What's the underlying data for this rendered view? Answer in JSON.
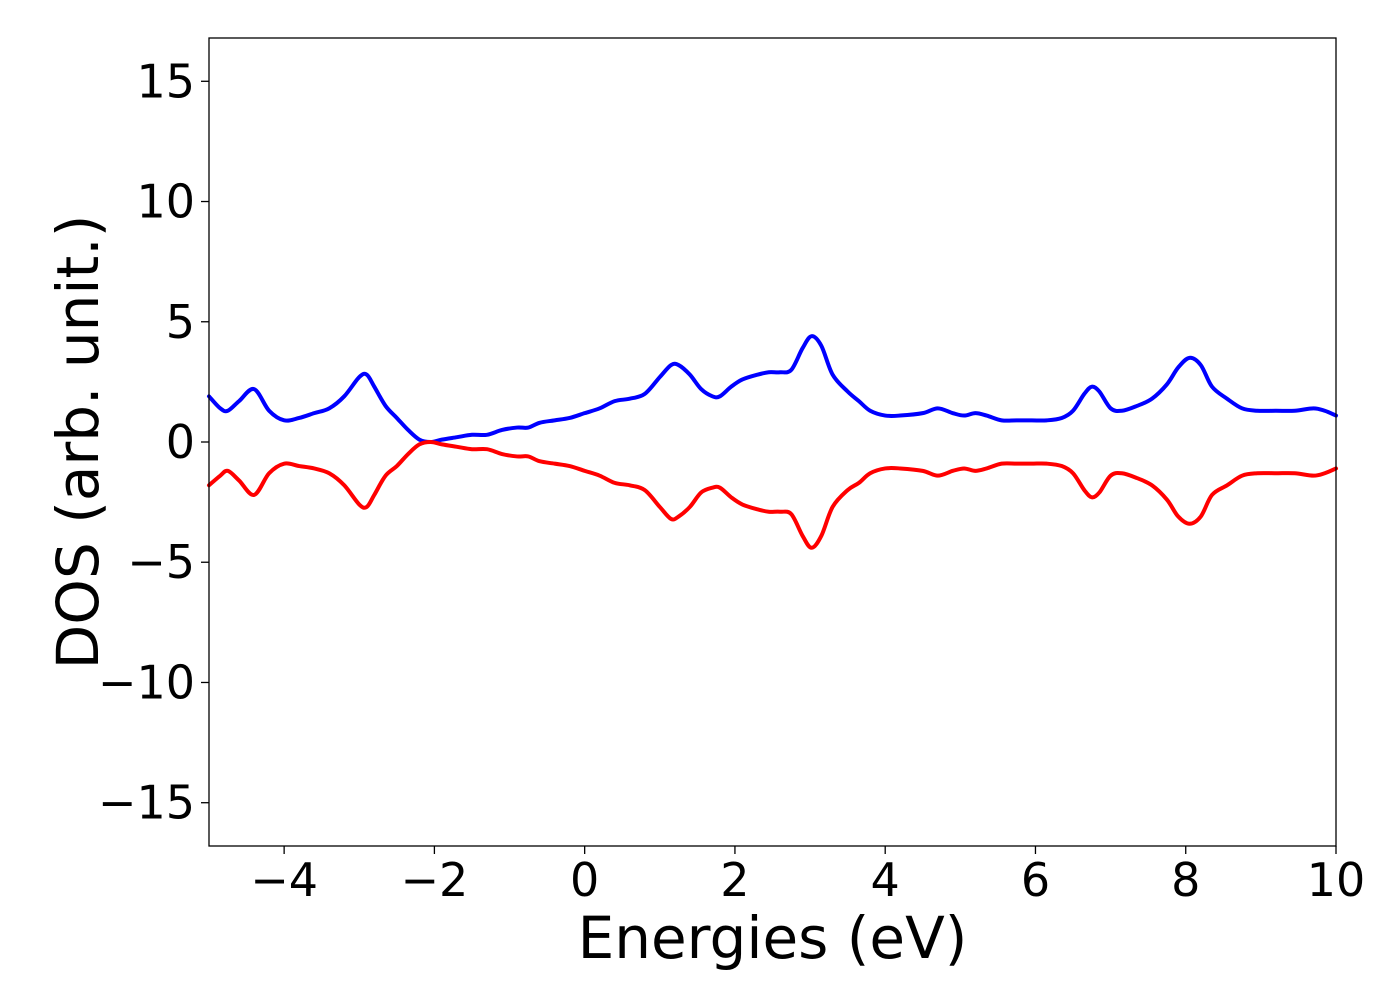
{
  "chart_data": {
    "type": "line",
    "title": "",
    "xlabel": "Energies (eV)",
    "ylabel": "DOS (arb. unit.)",
    "xlim": [
      -5,
      10
    ],
    "ylim": [
      -16.8,
      16.8
    ],
    "xticks": [
      -4,
      -2,
      0,
      2,
      4,
      6,
      8,
      10
    ],
    "xtick_labels": [
      "−4",
      "−2",
      "0",
      "2",
      "4",
      "6",
      "8",
      "10"
    ],
    "yticks": [
      15,
      10,
      5,
      0,
      -5,
      -10,
      -15
    ],
    "ytick_labels": [
      "15",
      "10",
      "5",
      "0",
      "−5",
      "−10",
      "−15"
    ],
    "grid": false,
    "series": [
      {
        "color": "#0000ff",
        "x": [
          -5.0,
          -4.85,
          -4.75,
          -4.6,
          -4.4,
          -4.2,
          -4.0,
          -3.8,
          -3.6,
          -3.4,
          -3.2,
          -3.0,
          -2.9,
          -2.8,
          -2.65,
          -2.5,
          -2.35,
          -2.2,
          -2.05,
          -1.9,
          -1.7,
          -1.5,
          -1.3,
          -1.1,
          -0.9,
          -0.75,
          -0.6,
          -0.4,
          -0.2,
          0.0,
          0.2,
          0.4,
          0.6,
          0.8,
          1.0,
          1.15,
          1.25,
          1.4,
          1.55,
          1.7,
          1.8,
          1.95,
          2.1,
          2.3,
          2.45,
          2.6,
          2.75,
          2.9,
          3.02,
          3.15,
          3.3,
          3.5,
          3.65,
          3.8,
          4.0,
          4.2,
          4.5,
          4.7,
          4.9,
          5.05,
          5.2,
          5.35,
          5.55,
          5.75,
          5.95,
          6.15,
          6.35,
          6.5,
          6.65,
          6.75,
          6.85,
          7.0,
          7.15,
          7.35,
          7.55,
          7.75,
          7.9,
          8.05,
          8.2,
          8.35,
          8.55,
          8.75,
          8.95,
          9.2,
          9.45,
          9.7,
          9.85,
          10.0
        ],
        "values": [
          1.9,
          1.4,
          1.3,
          1.7,
          2.2,
          1.3,
          0.9,
          1.0,
          1.2,
          1.4,
          1.9,
          2.7,
          2.8,
          2.3,
          1.5,
          1.0,
          0.5,
          0.1,
          0.0,
          0.1,
          0.2,
          0.3,
          0.3,
          0.5,
          0.6,
          0.6,
          0.8,
          0.9,
          1.0,
          1.2,
          1.4,
          1.7,
          1.8,
          2.0,
          2.7,
          3.2,
          3.2,
          2.8,
          2.2,
          1.9,
          1.9,
          2.3,
          2.6,
          2.8,
          2.9,
          2.9,
          3.0,
          3.9,
          4.4,
          4.0,
          2.8,
          2.1,
          1.7,
          1.3,
          1.1,
          1.1,
          1.2,
          1.4,
          1.2,
          1.1,
          1.2,
          1.1,
          0.9,
          0.9,
          0.9,
          0.9,
          1.0,
          1.3,
          2.0,
          2.3,
          2.1,
          1.4,
          1.3,
          1.5,
          1.8,
          2.4,
          3.1,
          3.5,
          3.2,
          2.3,
          1.8,
          1.4,
          1.3,
          1.3,
          1.3,
          1.4,
          1.3,
          1.1
        ]
      },
      {
        "color": "#ff0000",
        "x": [
          -5.0,
          -4.85,
          -4.75,
          -4.6,
          -4.4,
          -4.2,
          -4.0,
          -3.8,
          -3.6,
          -3.4,
          -3.2,
          -3.0,
          -2.9,
          -2.8,
          -2.65,
          -2.5,
          -2.35,
          -2.2,
          -2.05,
          -1.9,
          -1.7,
          -1.5,
          -1.3,
          -1.1,
          -0.9,
          -0.75,
          -0.6,
          -0.4,
          -0.2,
          0.0,
          0.2,
          0.4,
          0.6,
          0.8,
          1.0,
          1.15,
          1.25,
          1.4,
          1.55,
          1.7,
          1.8,
          1.95,
          2.1,
          2.3,
          2.45,
          2.6,
          2.75,
          2.9,
          3.02,
          3.15,
          3.3,
          3.5,
          3.65,
          3.8,
          4.0,
          4.2,
          4.5,
          4.7,
          4.9,
          5.05,
          5.2,
          5.35,
          5.55,
          5.75,
          5.95,
          6.15,
          6.35,
          6.5,
          6.65,
          6.75,
          6.85,
          7.0,
          7.15,
          7.35,
          7.55,
          7.75,
          7.9,
          8.05,
          8.2,
          8.35,
          8.55,
          8.75,
          8.95,
          9.2,
          9.45,
          9.7,
          9.85,
          10.0
        ],
        "values": [
          -1.8,
          -1.4,
          -1.2,
          -1.6,
          -2.2,
          -1.3,
          -0.9,
          -1.0,
          -1.1,
          -1.3,
          -1.8,
          -2.6,
          -2.7,
          -2.2,
          -1.4,
          -1.0,
          -0.5,
          -0.1,
          0.0,
          -0.1,
          -0.2,
          -0.3,
          -0.3,
          -0.5,
          -0.6,
          -0.6,
          -0.8,
          -0.9,
          -1.0,
          -1.2,
          -1.4,
          -1.7,
          -1.8,
          -2.0,
          -2.7,
          -3.2,
          -3.1,
          -2.7,
          -2.1,
          -1.9,
          -1.9,
          -2.3,
          -2.6,
          -2.8,
          -2.9,
          -2.9,
          -3.0,
          -3.9,
          -4.4,
          -3.9,
          -2.7,
          -2.0,
          -1.7,
          -1.3,
          -1.1,
          -1.1,
          -1.2,
          -1.4,
          -1.2,
          -1.1,
          -1.2,
          -1.1,
          -0.9,
          -0.9,
          -0.9,
          -0.9,
          -1.0,
          -1.3,
          -2.0,
          -2.3,
          -2.1,
          -1.4,
          -1.3,
          -1.5,
          -1.8,
          -2.4,
          -3.1,
          -3.4,
          -3.1,
          -2.2,
          -1.8,
          -1.4,
          -1.3,
          -1.3,
          -1.3,
          -1.4,
          -1.3,
          -1.1
        ]
      }
    ]
  }
}
